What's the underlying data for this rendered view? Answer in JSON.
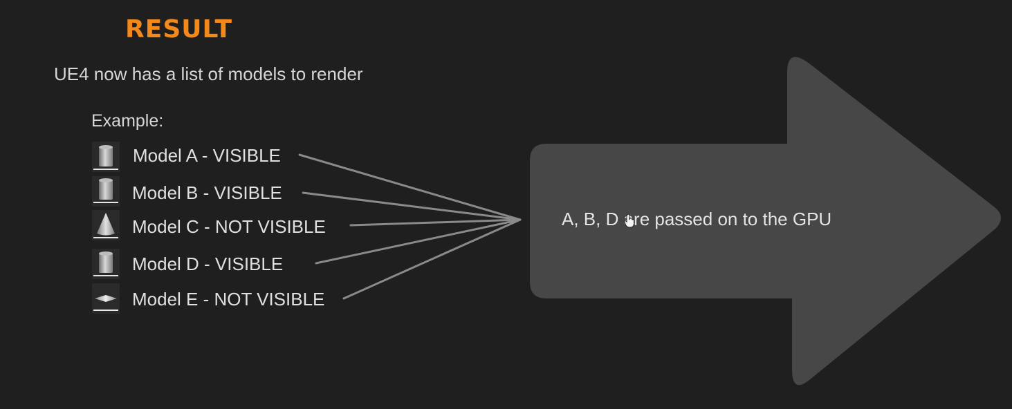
{
  "title": "RESULT",
  "subtitle": "UE4 now has a list of models to render",
  "example_label": "Example:",
  "models": [
    {
      "label": "Model A - VISIBLE",
      "icon": "cylinder-icon",
      "visible": true
    },
    {
      "label": "Model B - VISIBLE",
      "icon": "cylinder-icon",
      "visible": true
    },
    {
      "label": "Model C - NOT VISIBLE",
      "icon": "cone-icon",
      "visible": false
    },
    {
      "label": "Model D - VISIBLE",
      "icon": "cylinder-icon",
      "visible": true
    },
    {
      "label": "Model E - NOT VISIBLE",
      "icon": "plane-icon",
      "visible": false
    }
  ],
  "arrow_text": "A, B, D are passed on to the GPU",
  "colors": {
    "background": "#1f1f1f",
    "title": "#f3891b",
    "arrow": "#474747",
    "lines": "#8a8a8a"
  }
}
